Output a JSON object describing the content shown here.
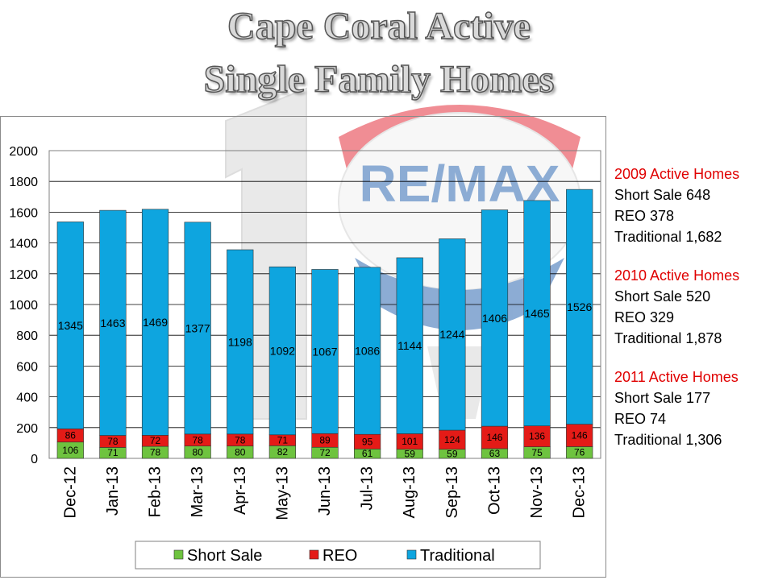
{
  "title": {
    "line1": "Cape Coral Active",
    "line2": "Single Family Homes"
  },
  "watermark": {
    "text": "RE/MAX",
    "colors": {
      "red": "#e21d2c",
      "blue": "#1b5cab",
      "gray": "#d4d4d4"
    }
  },
  "sidebar": {
    "groups": [
      {
        "heading": "2009 Active Homes",
        "lines": [
          "Short Sale 648",
          "REO 378",
          "Traditional 1,682"
        ]
      },
      {
        "heading": "2010 Active Homes",
        "lines": [
          "Short Sale 520",
          "REO 329",
          "Traditional 1,878"
        ]
      },
      {
        "heading": "2011 Active Homes",
        "lines": [
          "Short Sale 177",
          "REO 74",
          "Traditional 1,306"
        ]
      }
    ]
  },
  "chart_data": {
    "type": "bar",
    "stacked": true,
    "categories": [
      "Dec-12",
      "Jan-13",
      "Feb-13",
      "Mar-13",
      "Apr-13",
      "May-13",
      "Jun-13",
      "Jul-13",
      "Aug-13",
      "Sep-13",
      "Oct-13",
      "Nov-13",
      "Dec-13"
    ],
    "series": [
      {
        "name": "Short Sale",
        "color": "#6ec33f",
        "values": [
          106,
          71,
          78,
          80,
          80,
          82,
          72,
          61,
          59,
          59,
          63,
          75,
          76
        ]
      },
      {
        "name": "REO",
        "color": "#e41b17",
        "values": [
          86,
          78,
          72,
          78,
          78,
          71,
          89,
          95,
          101,
          124,
          146,
          136,
          146
        ]
      },
      {
        "name": "Traditional",
        "color": "#0ea5df",
        "values": [
          1345,
          1463,
          1469,
          1377,
          1198,
          1092,
          1067,
          1086,
          1144,
          1244,
          1406,
          1465,
          1526
        ]
      }
    ],
    "ylim": [
      0,
      2000
    ],
    "yticks": [
      0,
      200,
      400,
      600,
      800,
      1000,
      1200,
      1400,
      1600,
      1800,
      2000
    ],
    "grid": true,
    "legend": "bottom",
    "title": "",
    "xlabel": "",
    "ylabel": ""
  }
}
